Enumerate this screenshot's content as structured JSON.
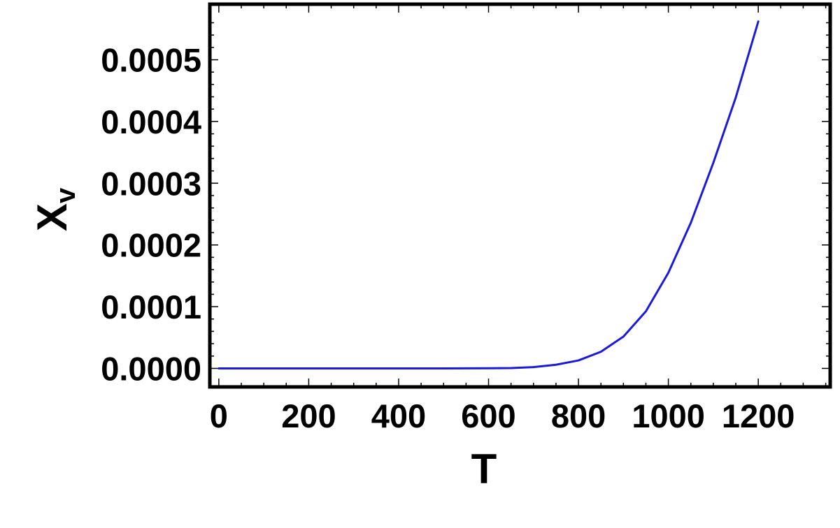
{
  "chart_data": {
    "type": "line",
    "xlabel": "T",
    "ylabel": {
      "main": "X",
      "subscript": "v"
    },
    "xlim": [
      -20,
      1360
    ],
    "ylim": [
      -3e-05,
      0.00059
    ],
    "x_ticks": [
      {
        "value": 0,
        "label": "0"
      },
      {
        "value": 200,
        "label": "200"
      },
      {
        "value": 400,
        "label": "400"
      },
      {
        "value": 600,
        "label": "600"
      },
      {
        "value": 800,
        "label": "800"
      },
      {
        "value": 1000,
        "label": "1000"
      },
      {
        "value": 1200,
        "label": "1200"
      }
    ],
    "y_ticks": [
      {
        "value": 0.0,
        "label": "0.0000"
      },
      {
        "value": 0.0001,
        "label": "0.0001"
      },
      {
        "value": 0.0002,
        "label": "0.0002"
      },
      {
        "value": 0.0003,
        "label": "0.0003"
      },
      {
        "value": 0.0004,
        "label": "0.0004"
      },
      {
        "value": 0.0005,
        "label": "0.0005"
      }
    ],
    "grid": false,
    "frame": true,
    "series": [
      {
        "color": "#1a1adb",
        "x": [
          0,
          200,
          400,
          500,
          600,
          650,
          700,
          750,
          800,
          850,
          900,
          950,
          1000,
          1050,
          1100,
          1150,
          1200
        ],
        "y": [
          0.0,
          0.0,
          0.0,
          0.0,
          2e-07,
          6e-07,
          2.1e-06,
          5.9e-06,
          1.29e-05,
          2.7e-05,
          5.15e-05,
          9.25e-05,
          0.000155,
          0.000236,
          0.000333,
          0.000439,
          0.000562
        ]
      }
    ]
  }
}
